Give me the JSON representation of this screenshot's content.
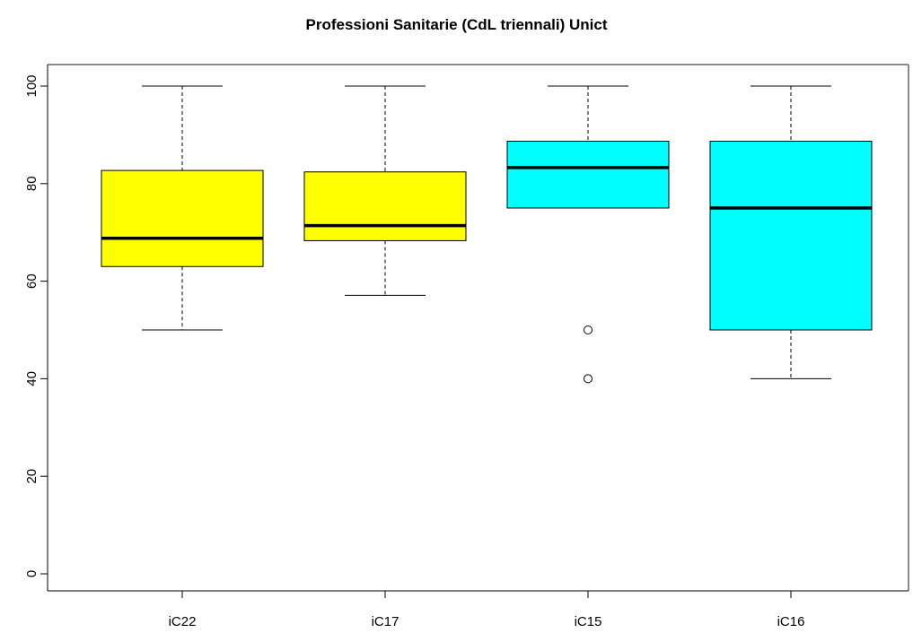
{
  "chart_data": {
    "type": "boxplot",
    "title": "Professioni Sanitarie (CdL triennali) Unict",
    "xlabel": "",
    "ylabel": "",
    "ylim": [
      0,
      100
    ],
    "yticks": [
      0,
      20,
      40,
      60,
      80,
      100
    ],
    "categories": [
      "iC22",
      "iC17",
      "iC15",
      "iC16"
    ],
    "boxes": [
      {
        "category": "iC22",
        "whisker_low": 50,
        "q1": 63,
        "median": 68.8,
        "q3": 82.7,
        "whisker_high": 100,
        "outliers": [],
        "color": "#ffff00"
      },
      {
        "category": "iC17",
        "whisker_low": 57.1,
        "q1": 68.3,
        "median": 71.4,
        "q3": 82.4,
        "whisker_high": 100,
        "outliers": [],
        "color": "#ffff00"
      },
      {
        "category": "iC15",
        "whisker_low": 75,
        "q1": 75,
        "median": 83.3,
        "q3": 88.7,
        "whisker_high": 100,
        "outliers": [
          50,
          40
        ],
        "color": "#00ffff"
      },
      {
        "category": "iC16",
        "whisker_low": 40,
        "q1": 50,
        "median": 75,
        "q3": 88.7,
        "whisker_high": 100,
        "outliers": [],
        "color": "#00ffff"
      }
    ],
    "grid": false,
    "legend": "none"
  }
}
